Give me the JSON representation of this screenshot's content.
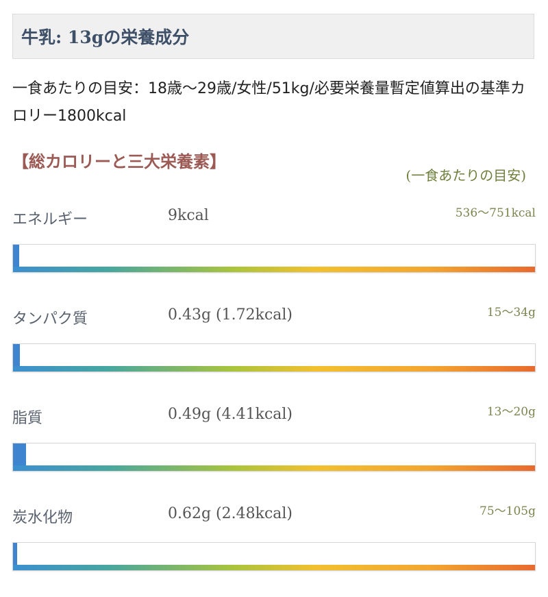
{
  "header": {
    "title": "牛乳: 13gの栄養成分"
  },
  "intro": {
    "text": "一食あたりの目安：18歳〜29歳/女性/51kg/必要栄養量暫定値算出の基準カロリー1800kcal"
  },
  "section": {
    "heading": "【総カロリーと三大栄養素】",
    "guide_note": "(一食あたりの目安)"
  },
  "colors": {
    "heading_brown": "#9c5a55",
    "title_navy": "#3e4f68",
    "target_olive": "#7d8450",
    "bar_fill_blue": "#3f84cf"
  },
  "nutrients": [
    {
      "name": "エネルギー",
      "amount": "9kcal",
      "target": "536〜751kcal",
      "fill_fraction": 0.012
    },
    {
      "name": "タンパク質",
      "amount": "0.43g (1.72kcal)",
      "target": "15〜34g",
      "fill_fraction": 0.013
    },
    {
      "name": "脂質",
      "amount": "0.49g (4.41kcal)",
      "target": "13〜20g",
      "fill_fraction": 0.025
    },
    {
      "name": "炭水化物",
      "amount": "0.62g (2.48kcal)",
      "target": "75〜105g",
      "fill_fraction": 0.008
    }
  ]
}
